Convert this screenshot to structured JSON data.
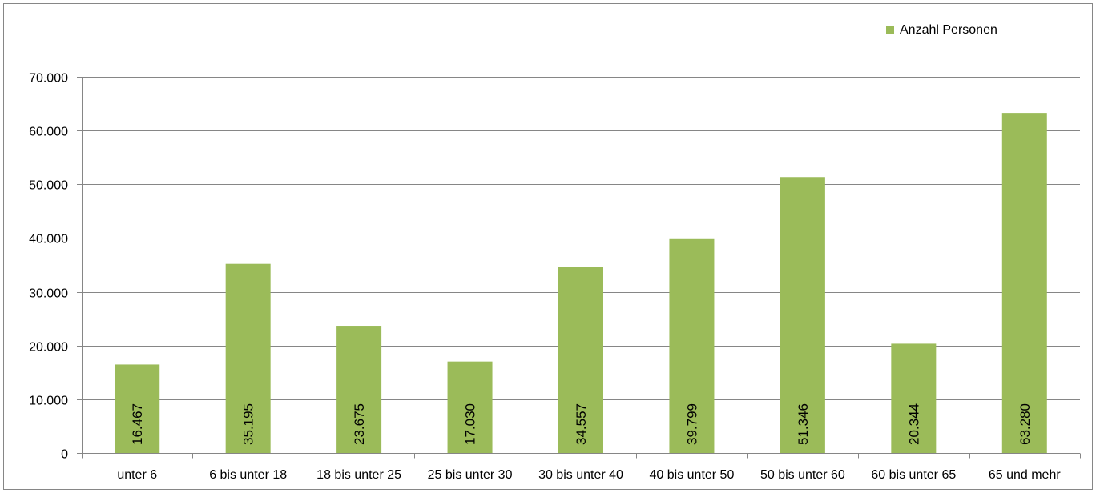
{
  "chart_data": {
    "type": "bar",
    "categories": [
      "unter 6",
      "6 bis unter 18",
      "18 bis unter 25",
      "25 bis unter 30",
      "30 bis unter 40",
      "40 bis unter 50",
      "50 bis unter 60",
      "60 bis unter 65",
      "65 und mehr"
    ],
    "series": [
      {
        "name": "Anzahl Personen",
        "values": [
          16467,
          35195,
          23675,
          17030,
          34557,
          39799,
          51346,
          20344,
          63280
        ],
        "labels": [
          "16.467",
          "35.195",
          "23.675",
          "17.030",
          "34.557",
          "39.799",
          "51.346",
          "20.344",
          "63.280"
        ],
        "color": "#9bbb59"
      }
    ],
    "yticks": [
      0,
      10000,
      20000,
      30000,
      40000,
      50000,
      60000,
      70000
    ],
    "ytick_labels": [
      "0",
      "10.000",
      "20.000",
      "30.000",
      "40.000",
      "50.000",
      "60.000",
      "70.000"
    ],
    "ylim": [
      0,
      70000
    ],
    "grid": true,
    "legend_position": "top-right",
    "title": "",
    "xlabel": "",
    "ylabel": "",
    "gridline_color": "#868686",
    "axis_color": "#868686"
  }
}
